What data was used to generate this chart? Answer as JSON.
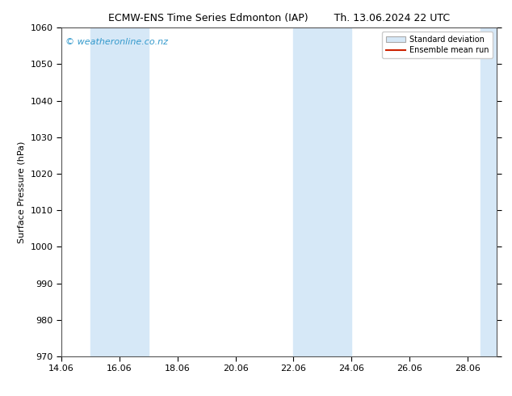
{
  "title_left": "ECMW-ENS Time Series Edmonton (IAP)",
  "title_right": "Th. 13.06.2024 22 UTC",
  "xlabel": "",
  "ylabel": "Surface Pressure (hPa)",
  "xlim": [
    14.06,
    29.06
  ],
  "ylim": [
    970,
    1060
  ],
  "yticks": [
    970,
    980,
    990,
    1000,
    1010,
    1020,
    1030,
    1040,
    1050,
    1060
  ],
  "xticks": [
    14.06,
    16.06,
    18.06,
    20.06,
    22.06,
    24.06,
    26.06,
    28.06
  ],
  "xtick_labels": [
    "14.06",
    "16.06",
    "18.06",
    "20.06",
    "22.06",
    "24.06",
    "26.06",
    "28.06"
  ],
  "shaded_bands": [
    {
      "x_start": 15.06,
      "x_end": 17.06
    },
    {
      "x_start": 22.06,
      "x_end": 24.06
    },
    {
      "x_start": 28.5,
      "x_end": 29.3
    }
  ],
  "band_color": "#d6e8f7",
  "band_alpha": 1.0,
  "watermark": "© weatheronline.co.nz",
  "watermark_color": "#3399cc",
  "watermark_fontsize": 8,
  "legend_std_label": "Standard deviation",
  "legend_mean_label": "Ensemble mean run",
  "legend_std_facecolor": "#d6e8f7",
  "legend_std_edgecolor": "#aaaaaa",
  "legend_mean_color": "#cc2200",
  "background_color": "#ffffff",
  "title_fontsize": 9,
  "ylabel_fontsize": 8,
  "tick_fontsize": 8,
  "spine_color": "#555555"
}
